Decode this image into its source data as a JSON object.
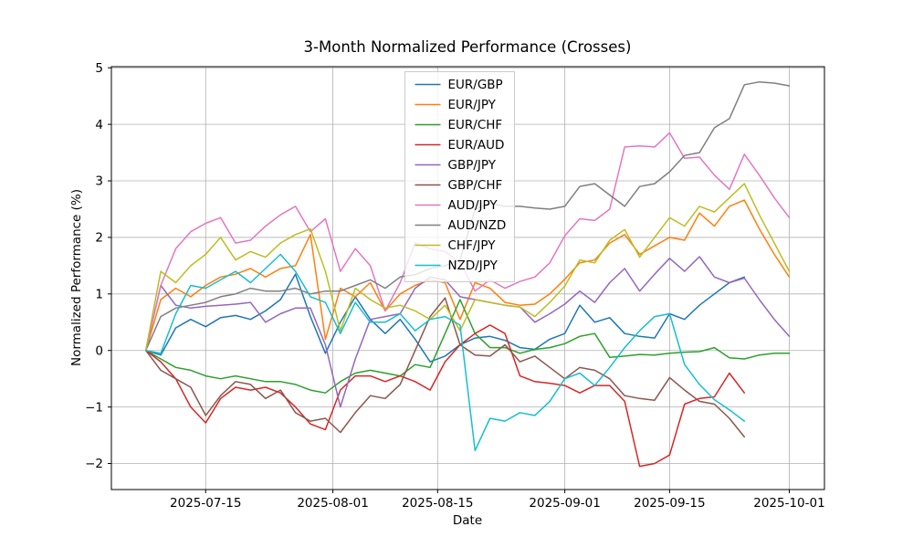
{
  "title": "3-Month Normalized Performance (Crosses)",
  "axes": {
    "xlabel": "Date",
    "ylabel": "Normalized Performance (%)"
  },
  "chart_data": {
    "type": "line",
    "title": "3-Month Normalized Performance (Crosses)",
    "xlabel": "Date",
    "ylabel": "Normalized Performance (%)",
    "grid": true,
    "legend_position": "upper center-left inside plot",
    "x_start_date": "2025-07-07",
    "x_days": [
      0,
      2,
      4,
      6,
      8,
      10,
      12,
      14,
      16,
      18,
      20,
      22,
      24,
      26,
      28,
      30,
      32,
      34,
      36,
      38,
      40,
      42,
      44,
      46,
      48,
      50,
      52,
      54,
      56,
      58,
      60,
      62,
      64,
      66,
      68,
      70,
      72,
      74,
      76,
      78,
      80,
      82,
      84,
      86
    ],
    "x_ticks": [
      {
        "day": 8,
        "label": "2025-07-15"
      },
      {
        "day": 25,
        "label": "2025-08-01"
      },
      {
        "day": 39,
        "label": "2025-08-15"
      },
      {
        "day": 56,
        "label": "2025-09-01"
      },
      {
        "day": 70,
        "label": "2025-09-15"
      },
      {
        "day": 86,
        "label": "2025-10-01"
      }
    ],
    "y_ticks": [
      {
        "value": -2,
        "label": "−2"
      },
      {
        "value": -1,
        "label": "−1"
      },
      {
        "value": 0,
        "label": "0"
      },
      {
        "value": 1,
        "label": "1"
      },
      {
        "value": 2,
        "label": "2"
      },
      {
        "value": 3,
        "label": "3"
      },
      {
        "value": 4,
        "label": "4"
      },
      {
        "value": 5,
        "label": "5"
      }
    ],
    "ylim": [
      -2.46,
      5.02
    ],
    "xlim_days": [
      -4.6,
      90.7
    ],
    "grid_color": "#b0b0b0",
    "series": [
      {
        "name": "EUR/GBP",
        "color": "#1f77b4",
        "values": [
          0,
          -0.08,
          0.4,
          0.55,
          0.42,
          0.58,
          0.62,
          0.55,
          0.7,
          0.9,
          1.35,
          0.6,
          -0.05,
          0.5,
          0.95,
          0.55,
          0.3,
          0.55,
          0.2,
          -0.2,
          -0.1,
          0.1,
          0.22,
          0.25,
          0.18,
          0.05,
          0.02,
          0.2,
          0.3,
          0.8,
          0.5,
          0.58,
          0.3,
          0.25,
          0.22,
          0.65,
          0.55,
          0.8,
          1.0,
          1.2,
          1.3,
          null,
          null,
          null
        ]
      },
      {
        "name": "EUR/JPY",
        "color": "#ff7f0e",
        "values": [
          0,
          0.9,
          1.1,
          0.95,
          1.15,
          1.3,
          1.35,
          1.45,
          1.3,
          1.45,
          1.5,
          2.05,
          0.2,
          1.1,
          0.95,
          1.2,
          0.7,
          1.0,
          1.15,
          1.25,
          1.2,
          0.55,
          1.2,
          1.1,
          0.85,
          0.8,
          0.82,
          1.0,
          1.26,
          1.55,
          1.6,
          1.9,
          2.05,
          1.7,
          1.85,
          2.0,
          1.95,
          2.43,
          2.2,
          2.55,
          2.66,
          2.15,
          1.7,
          1.3
        ]
      },
      {
        "name": "EUR/CHF",
        "color": "#2ca02c",
        "values": [
          0,
          -0.15,
          -0.3,
          -0.35,
          -0.45,
          -0.5,
          -0.45,
          -0.5,
          -0.55,
          -0.55,
          -0.6,
          -0.7,
          -0.75,
          -0.55,
          -0.4,
          -0.35,
          -0.4,
          -0.45,
          -0.25,
          -0.3,
          0.3,
          0.9,
          0.3,
          0.05,
          0.05,
          -0.05,
          0.02,
          0.05,
          0.12,
          0.25,
          0.3,
          -0.12,
          -0.1,
          -0.07,
          -0.08,
          -0.05,
          -0.03,
          -0.02,
          0.05,
          -0.13,
          -0.15,
          -0.08,
          -0.05,
          -0.05
        ]
      },
      {
        "name": "EUR/AUD",
        "color": "#d62728",
        "values": [
          0,
          -0.2,
          -0.5,
          -1.0,
          -1.28,
          -0.85,
          -0.65,
          -0.7,
          -0.65,
          -0.75,
          -1.0,
          -1.3,
          -1.4,
          -0.7,
          -0.45,
          -0.45,
          -0.55,
          -0.45,
          -0.55,
          -0.7,
          -0.2,
          0.1,
          0.3,
          0.45,
          0.3,
          -0.45,
          -0.55,
          -0.58,
          -0.62,
          -0.75,
          -0.62,
          -0.62,
          -0.9,
          -2.05,
          -2.0,
          -1.85,
          -0.95,
          -0.85,
          -0.82,
          -0.4,
          -0.75,
          null,
          null,
          null
        ]
      },
      {
        "name": "GBP/JPY",
        "color": "#9467bd",
        "values": [
          0,
          1.15,
          0.8,
          0.75,
          0.78,
          0.8,
          0.82,
          0.85,
          0.5,
          0.65,
          0.75,
          0.75,
          0.1,
          -1.0,
          -0.15,
          0.55,
          0.6,
          0.65,
          1.1,
          1.3,
          1.25,
          0.95,
          0.9,
          0.85,
          0.8,
          0.77,
          0.5,
          0.65,
          0.82,
          1.05,
          0.85,
          1.2,
          1.45,
          1.05,
          1.35,
          1.63,
          1.4,
          1.66,
          1.3,
          1.2,
          1.28,
          0.9,
          0.55,
          0.25
        ]
      },
      {
        "name": "GBP/CHF",
        "color": "#8c564b",
        "values": [
          0,
          -0.35,
          -0.5,
          -0.65,
          -1.15,
          -0.8,
          -0.55,
          -0.6,
          -0.85,
          -0.7,
          -1.1,
          -1.25,
          -1.2,
          -1.45,
          -1.1,
          -0.8,
          -0.85,
          -0.6,
          0.0,
          0.6,
          0.93,
          0.1,
          -0.08,
          -0.1,
          0.1,
          -0.2,
          -0.1,
          -0.3,
          -0.5,
          -0.3,
          -0.35,
          -0.5,
          -0.8,
          -0.85,
          -0.88,
          -0.48,
          -0.7,
          -0.9,
          -0.95,
          -1.2,
          -1.53,
          null,
          null,
          null
        ]
      },
      {
        "name": "AUD/JPY",
        "color": "#e377c2",
        "values": [
          0,
          1.15,
          1.8,
          2.1,
          2.25,
          2.35,
          1.9,
          1.95,
          2.2,
          2.4,
          2.55,
          2.1,
          2.33,
          1.4,
          1.8,
          1.5,
          0.7,
          1.2,
          1.9,
          1.8,
          1.75,
          1.55,
          1.05,
          1.25,
          1.1,
          1.22,
          1.3,
          1.55,
          2.03,
          2.33,
          2.3,
          2.5,
          3.6,
          3.62,
          3.6,
          3.85,
          3.4,
          3.42,
          3.1,
          2.85,
          3.47,
          3.1,
          2.7,
          2.35
        ]
      },
      {
        "name": "AUD/NZD",
        "color": "#7f7f7f",
        "values": [
          0,
          0.6,
          0.75,
          0.8,
          0.85,
          0.95,
          1.0,
          1.1,
          1.05,
          1.05,
          1.1,
          1.0,
          1.05,
          1.05,
          1.15,
          1.25,
          1.1,
          1.3,
          1.34,
          1.45,
          1.5,
          1.6,
          2.5,
          2.6,
          2.55,
          2.55,
          2.52,
          2.5,
          2.55,
          2.9,
          2.95,
          2.75,
          2.55,
          2.9,
          2.95,
          3.16,
          3.45,
          3.5,
          3.94,
          4.1,
          4.7,
          4.75,
          4.73,
          4.68
        ]
      },
      {
        "name": "CHF/JPY",
        "color": "#bcbd22",
        "values": [
          0,
          1.4,
          1.2,
          1.5,
          1.7,
          2.0,
          1.6,
          1.75,
          1.65,
          1.9,
          2.05,
          2.15,
          1.4,
          0.35,
          1.1,
          0.9,
          0.75,
          0.8,
          0.7,
          0.55,
          0.8,
          0.35,
          0.9,
          0.85,
          0.8,
          0.77,
          0.6,
          0.85,
          1.14,
          1.6,
          1.55,
          1.95,
          2.14,
          1.65,
          2.0,
          2.35,
          2.2,
          2.55,
          2.45,
          2.7,
          2.95,
          2.4,
          1.9,
          1.4
        ]
      },
      {
        "name": "NZD/JPY",
        "color": "#17becf",
        "values": [
          0,
          -0.05,
          0.65,
          1.15,
          1.1,
          1.25,
          1.4,
          1.2,
          1.45,
          1.7,
          1.4,
          0.95,
          0.85,
          0.3,
          0.85,
          0.5,
          0.5,
          0.65,
          0.35,
          0.55,
          0.6,
          0.45,
          -1.77,
          -1.2,
          -1.25,
          -1.1,
          -1.15,
          -0.9,
          -0.5,
          -0.4,
          -0.62,
          -0.3,
          0.05,
          0.35,
          0.6,
          0.65,
          -0.25,
          -0.6,
          -0.87,
          -1.05,
          -1.25,
          null,
          null,
          null
        ]
      }
    ]
  }
}
